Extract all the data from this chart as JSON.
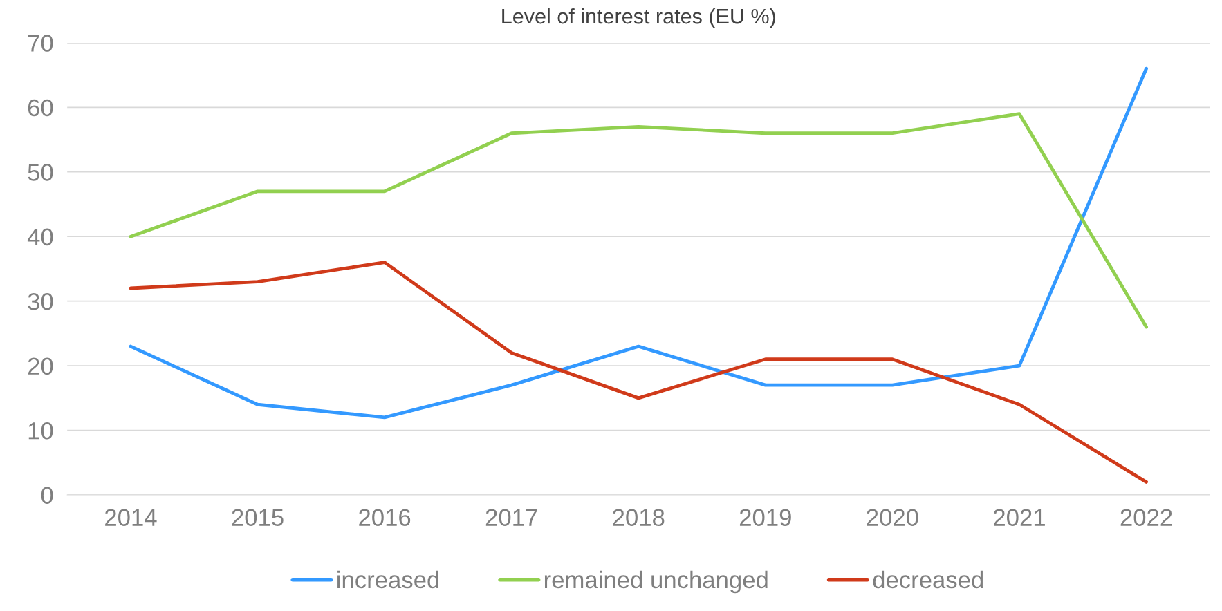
{
  "chart_data": {
    "type": "line",
    "title": "Level of interest rates (EU %)",
    "categories": [
      "2014",
      "2015",
      "2016",
      "2017",
      "2018",
      "2019",
      "2020",
      "2021",
      "2022"
    ],
    "series": [
      {
        "name": "increased",
        "color": "#3399ff",
        "values": [
          23,
          14,
          12,
          17,
          23,
          17,
          17,
          20,
          66
        ]
      },
      {
        "name": "remained unchanged",
        "color": "#92d050",
        "values": [
          40,
          47,
          47,
          56,
          57,
          56,
          56,
          59,
          26
        ]
      },
      {
        "name": "decreased",
        "color": "#d03a1a",
        "values": [
          32,
          33,
          36,
          22,
          15,
          21,
          21,
          14,
          2
        ]
      }
    ],
    "ylim": [
      0,
      70
    ],
    "yticks": [
      0,
      10,
      20,
      30,
      40,
      50,
      60,
      70
    ],
    "grid": "y",
    "legend": "bottom",
    "marker": "none",
    "line_style": "solid"
  }
}
